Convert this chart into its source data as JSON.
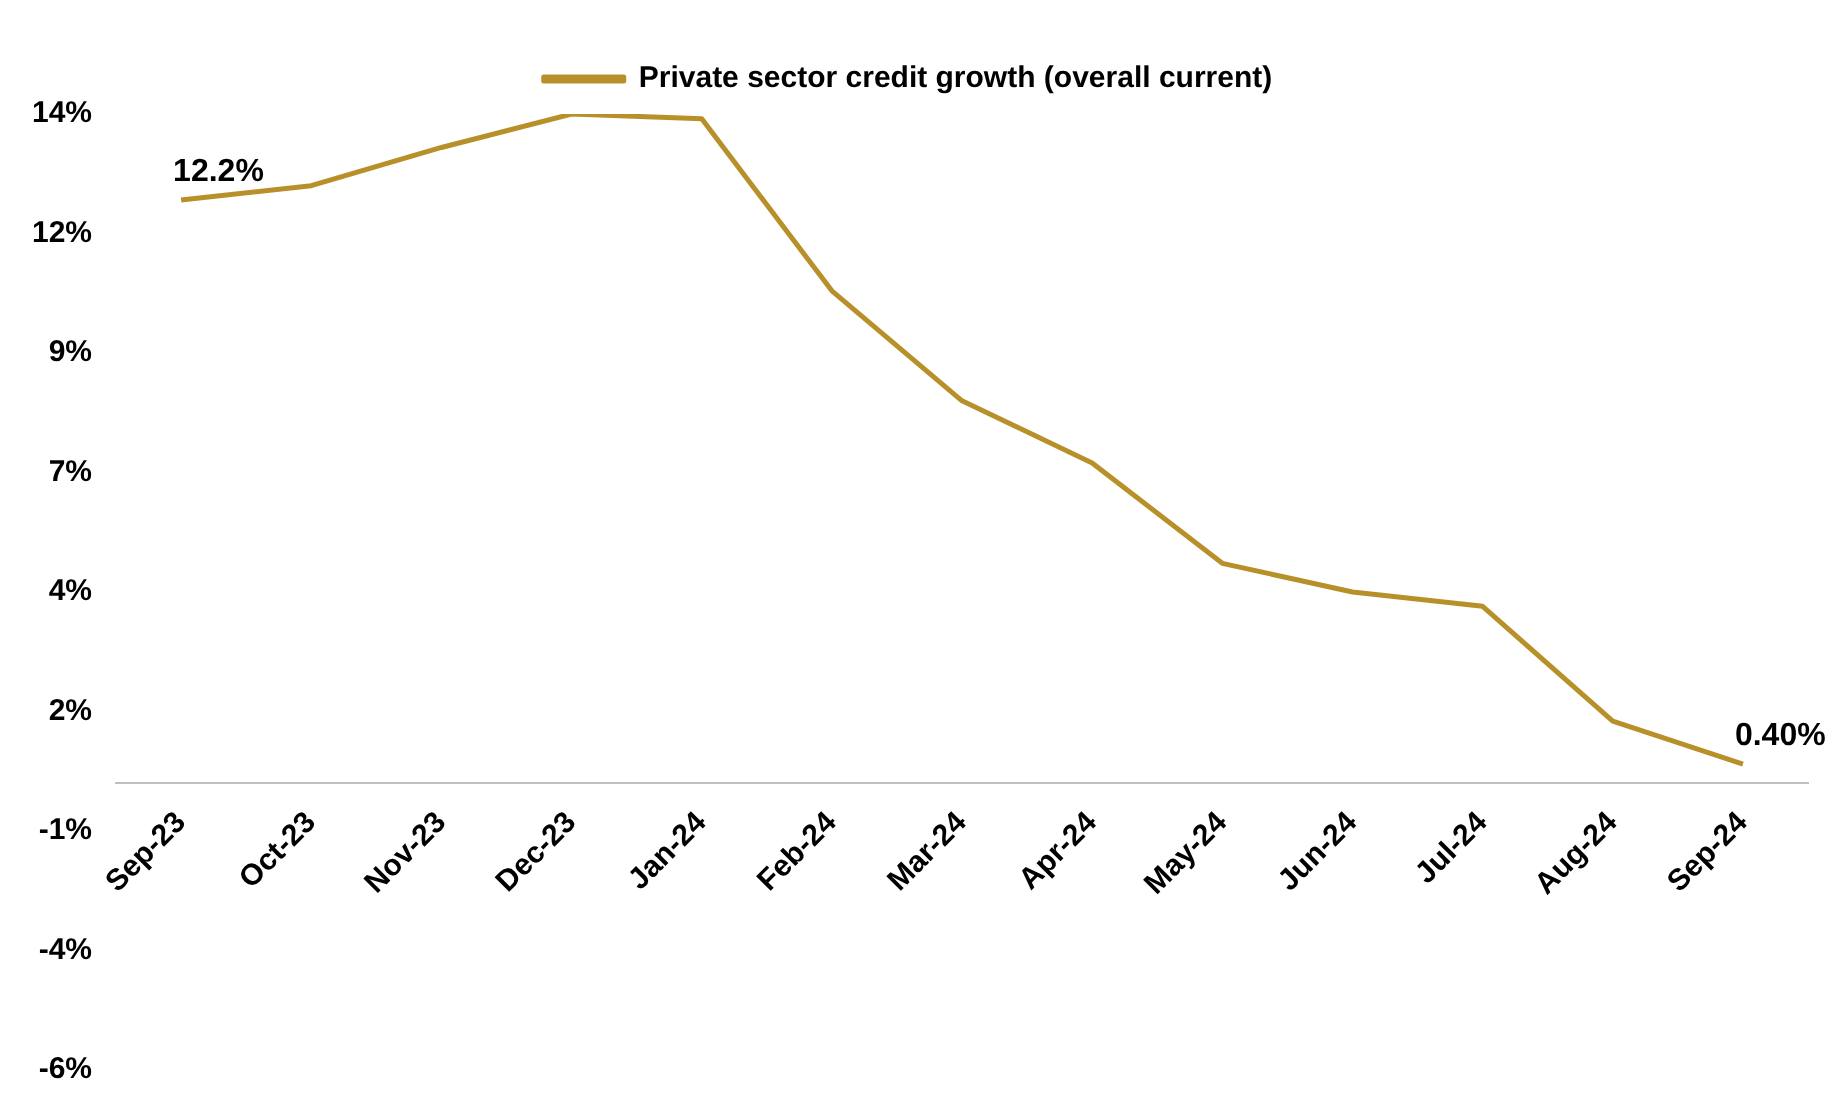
{
  "chart_data": {
    "type": "line",
    "categories": [
      "Sep-23",
      "Oct-23",
      "Nov-23",
      "Dec-23",
      "Jan-24",
      "Feb-24",
      "Mar-24",
      "Apr-24",
      "May-24",
      "Jun-24",
      "Jul-24",
      "Aug-24",
      "Sep-24"
    ],
    "series": [
      {
        "name": "Private sector credit growth (overall current)",
        "color": "#b8902a",
        "values": [
          12.2,
          12.5,
          13.3,
          14.0,
          13.9,
          10.3,
          8.0,
          6.7,
          4.6,
          4.0,
          3.7,
          1.3,
          0.4
        ],
        "value_labels": [
          "12.2%",
          null,
          null,
          null,
          null,
          null,
          null,
          null,
          null,
          null,
          null,
          null,
          "0.40%"
        ]
      }
    ],
    "ylim": [
      -6,
      14
    ],
    "yticks": [
      {
        "value": -6,
        "label": "-6%"
      },
      {
        "value": -3.5,
        "label": "-4%"
      },
      {
        "value": -1,
        "label": "-1%"
      },
      {
        "value": 1.5,
        "label": "2%"
      },
      {
        "value": 4,
        "label": "4%"
      },
      {
        "value": 6.5,
        "label": "7%"
      },
      {
        "value": 9,
        "label": "9%"
      },
      {
        "value": 11.5,
        "label": "12%"
      },
      {
        "value": 14,
        "label": "14%"
      }
    ],
    "grid": false,
    "legend": "top",
    "marker": "none",
    "line_style": "solid"
  }
}
